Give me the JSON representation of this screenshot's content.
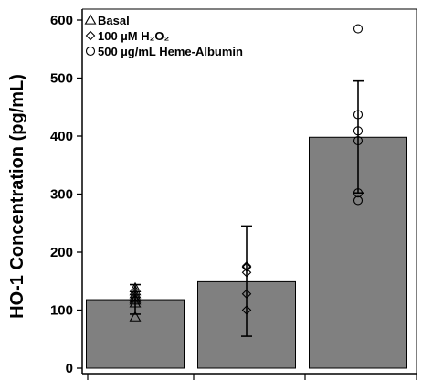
{
  "chart_data": {
    "type": "bar",
    "ylabel": "HO-1 Concentration (pg/mL)",
    "ylim": [
      0,
      600
    ],
    "yticks": [
      0,
      100,
      200,
      300,
      400,
      500,
      600
    ],
    "grid": false,
    "legend_position": "top-left",
    "categories": [
      "Basal",
      "100 µM H₂O₂",
      "500 µg/mL Heme-Albumin"
    ],
    "bar_color": "#808080",
    "legend": [
      {
        "label": "Basal",
        "marker": "triangle"
      },
      {
        "label": "100 µM H₂O₂",
        "marker": "diamond"
      },
      {
        "label": "500 µg/mL Heme-Albumin",
        "marker": "circle"
      }
    ],
    "bars": [
      {
        "category": "Basal",
        "marker": "triangle",
        "mean": 118,
        "error_low": 93,
        "error_high": 144,
        "points": [
          88,
          112,
          117,
          120,
          124,
          128,
          133,
          138
        ]
      },
      {
        "category": "100 µM H₂O₂",
        "marker": "diamond",
        "mean": 149,
        "error_low": 55,
        "error_high": 245,
        "points": [
          100,
          128,
          165,
          174,
          176
        ]
      },
      {
        "category": "500 µg/mL Heme-Albumin",
        "marker": "circle",
        "mean": 398,
        "error_low": 302,
        "error_high": 495,
        "points": [
          289,
          302,
          392,
          409,
          437,
          585
        ]
      }
    ]
  }
}
